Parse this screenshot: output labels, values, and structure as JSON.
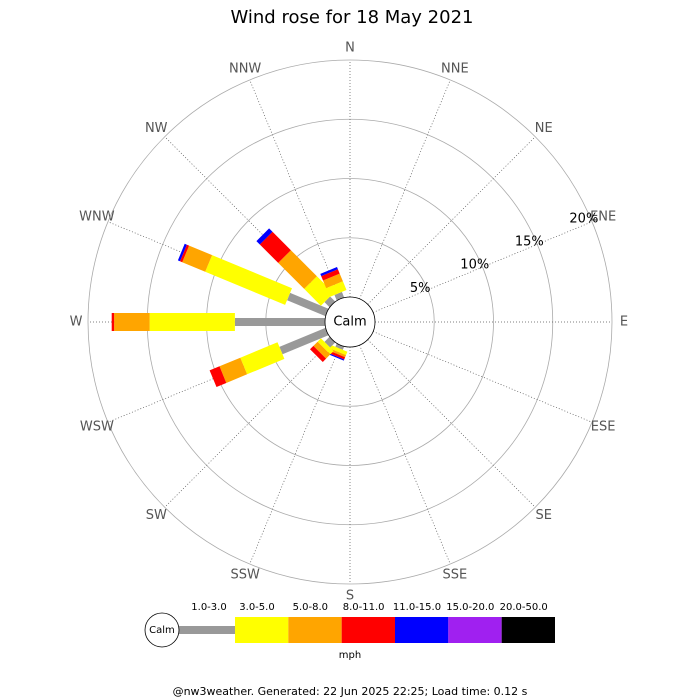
{
  "chart_data": {
    "type": "windrose",
    "title": "Wind rose for 18 May 2021",
    "categories": [
      "N",
      "NNE",
      "NE",
      "ENE",
      "E",
      "ESE",
      "SE",
      "SSE",
      "S",
      "SSW",
      "SW",
      "WSW",
      "W",
      "WNW",
      "NW",
      "NNW"
    ],
    "calm_label": "Calm",
    "rlim": [
      0,
      20
    ],
    "rticks": [
      {
        "value": 5,
        "label": "5%"
      },
      {
        "value": 10,
        "label": "10%"
      },
      {
        "value": 15,
        "label": "15%"
      },
      {
        "value": 20,
        "label": "20%"
      }
    ],
    "series": [
      {
        "name": "1.0-3.0",
        "color": "#999999",
        "values": [
          0,
          0,
          0,
          0,
          0,
          0,
          0,
          0,
          0,
          0.3,
          0.6,
          4.2,
          7.6,
          3.5,
          0.6,
          0.5
        ]
      },
      {
        "name": "3.0-5.0",
        "color": "#ffff00",
        "values": [
          0,
          0,
          0,
          0,
          0,
          0,
          0,
          0,
          0,
          0.3,
          0.4,
          3.4,
          7.2,
          7.3,
          2.0,
          0.8
        ]
      },
      {
        "name": "5.0-8.0",
        "color": "#ffa500",
        "values": [
          0,
          0,
          0,
          0,
          0,
          0,
          0,
          0,
          0,
          0.2,
          0.5,
          1.9,
          3.0,
          2.1,
          3.1,
          0.7
        ]
      },
      {
        "name": "8.0-11.0",
        "color": "#ff0000",
        "values": [
          0,
          0,
          0,
          0,
          0,
          0,
          0,
          0,
          0,
          0.2,
          0.4,
          0.9,
          0.2,
          0.2,
          2.2,
          0.4
        ]
      },
      {
        "name": "11.0-15.0",
        "color": "#0000ff",
        "values": [
          0,
          0,
          0,
          0,
          0,
          0,
          0,
          0,
          0,
          0.1,
          0,
          0,
          0,
          0.2,
          0.4,
          0.2
        ]
      },
      {
        "name": "15.0-20.0",
        "color": "#a020f0",
        "values": [
          0,
          0,
          0,
          0,
          0,
          0,
          0,
          0,
          0,
          0,
          0,
          0,
          0,
          0,
          0,
          0
        ]
      },
      {
        "name": "20.0-50.0",
        "color": "#000000",
        "values": [
          0,
          0,
          0,
          0,
          0,
          0,
          0,
          0,
          0,
          0,
          0,
          0,
          0,
          0,
          0,
          0
        ]
      }
    ],
    "legend_unit": "mph",
    "footer": "@nw3weather.  Generated: 22 Jun 2025 22:25; Load time: 0.12 s"
  }
}
